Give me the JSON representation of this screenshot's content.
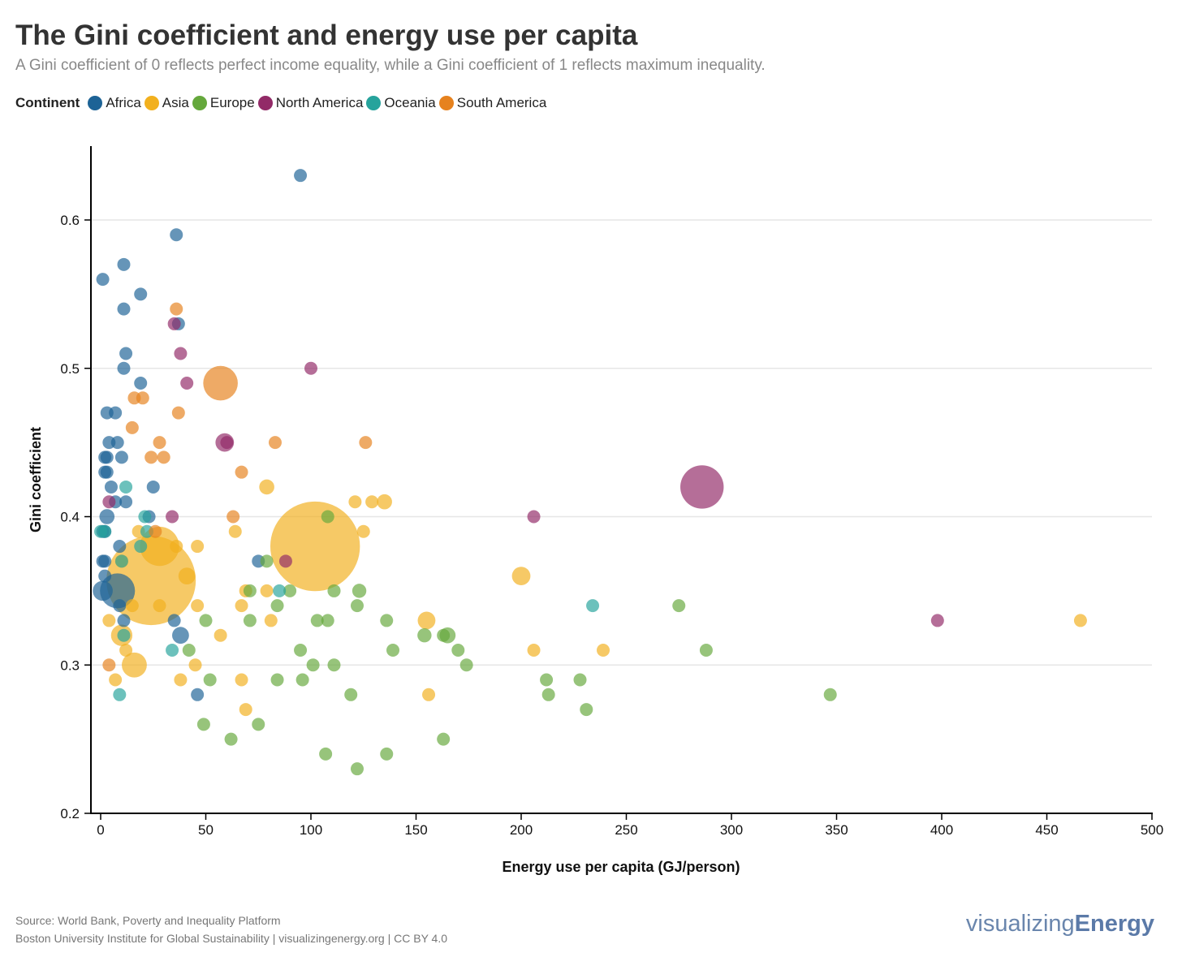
{
  "title": "The Gini coefficient and energy use per capita",
  "subtitle": "A Gini coefficient of 0 reflects perfect income equality, while a Gini coefficient of 1 reflects maximum inequality.",
  "legend_title": "Continent",
  "footer": {
    "source": "Source: World Bank, Poverty and Inequality Platform",
    "credit": "Boston University Institute for Global Sustainability | visualizingenergy.org | CC BY 4.0",
    "logo_a": "visualizing",
    "logo_b": "Energy"
  },
  "chart_data": {
    "type": "scatter",
    "title": "The Gini coefficient and energy use per capita",
    "xlabel": "Energy use per capita (GJ/person)",
    "ylabel": "Gini coefficient",
    "xlim": [
      0,
      500
    ],
    "ylim": [
      0.2,
      0.65
    ],
    "xticks": [
      0,
      50,
      100,
      150,
      200,
      250,
      300,
      350,
      400,
      450,
      500
    ],
    "yticks": [
      0.2,
      0.3,
      0.4,
      0.5,
      0.6
    ],
    "grid": "horizontal",
    "legend_position": "top-left",
    "size_note": "bubble size ~ population (approx., millions)",
    "series": [
      {
        "name": "Africa",
        "color": "#1d6396",
        "points": [
          [
            95,
            0.63,
            20
          ],
          [
            36,
            0.59,
            10
          ],
          [
            1,
            0.56,
            10
          ],
          [
            11,
            0.57,
            10
          ],
          [
            19,
            0.55,
            10
          ],
          [
            11,
            0.54,
            12
          ],
          [
            37,
            0.53,
            10
          ],
          [
            12,
            0.51,
            15
          ],
          [
            11,
            0.5,
            10
          ],
          [
            19,
            0.49,
            10
          ],
          [
            3,
            0.47,
            10
          ],
          [
            7,
            0.47,
            10
          ],
          [
            4,
            0.45,
            10
          ],
          [
            8,
            0.45,
            10
          ],
          [
            2,
            0.44,
            10
          ],
          [
            3,
            0.44,
            10
          ],
          [
            10,
            0.44,
            12
          ],
          [
            2,
            0.43,
            10
          ],
          [
            3,
            0.43,
            22
          ],
          [
            5,
            0.42,
            10
          ],
          [
            25,
            0.42,
            10
          ],
          [
            7,
            0.41,
            20
          ],
          [
            12,
            0.41,
            10
          ],
          [
            3,
            0.4,
            40
          ],
          [
            23,
            0.4,
            15
          ],
          [
            1,
            0.39,
            10
          ],
          [
            2,
            0.39,
            10
          ],
          [
            9,
            0.38,
            10
          ],
          [
            75,
            0.37,
            10
          ],
          [
            1,
            0.37,
            10
          ],
          [
            2,
            0.37,
            10
          ],
          [
            2,
            0.36,
            10
          ],
          [
            1,
            0.35,
            70
          ],
          [
            8,
            0.35,
            215
          ],
          [
            9,
            0.34,
            10
          ],
          [
            35,
            0.33,
            10
          ],
          [
            11,
            0.33,
            10
          ],
          [
            38,
            0.32,
            50
          ],
          [
            46,
            0.28,
            15
          ]
        ]
      },
      {
        "name": "Asia",
        "color": "#f2b01e",
        "points": [
          [
            24,
            0.357,
            1400
          ],
          [
            102,
            0.38,
            1410
          ],
          [
            28,
            0.38,
            270
          ],
          [
            41,
            0.36,
            50
          ],
          [
            16,
            0.3,
            110
          ],
          [
            10,
            0.32,
            80
          ],
          [
            79,
            0.42,
            40
          ],
          [
            135,
            0.41,
            40
          ],
          [
            200,
            0.36,
            60
          ],
          [
            155,
            0.33,
            55
          ],
          [
            69,
            0.35,
            30
          ],
          [
            12,
            0.31,
            25
          ],
          [
            4,
            0.33,
            10
          ],
          [
            7,
            0.29,
            10
          ],
          [
            10,
            0.37,
            10
          ],
          [
            15,
            0.34,
            10
          ],
          [
            18,
            0.39,
            10
          ],
          [
            28,
            0.34,
            10
          ],
          [
            36,
            0.38,
            10
          ],
          [
            46,
            0.38,
            10
          ],
          [
            46,
            0.34,
            10
          ],
          [
            45,
            0.3,
            15
          ],
          [
            38,
            0.29,
            10
          ],
          [
            57,
            0.32,
            10
          ],
          [
            64,
            0.39,
            10
          ],
          [
            67,
            0.34,
            10
          ],
          [
            67,
            0.29,
            10
          ],
          [
            69,
            0.27,
            10
          ],
          [
            79,
            0.35,
            10
          ],
          [
            81,
            0.33,
            10
          ],
          [
            121,
            0.41,
            10
          ],
          [
            125,
            0.39,
            10
          ],
          [
            129,
            0.41,
            10
          ],
          [
            156,
            0.28,
            10
          ],
          [
            206,
            0.31,
            10
          ],
          [
            239,
            0.31,
            12
          ],
          [
            466,
            0.33,
            10
          ]
        ]
      },
      {
        "name": "Europe",
        "color": "#65a83c",
        "points": [
          [
            108,
            0.4,
            10
          ],
          [
            79,
            0.37,
            10
          ],
          [
            71,
            0.35,
            10
          ],
          [
            90,
            0.35,
            10
          ],
          [
            84,
            0.34,
            10
          ],
          [
            111,
            0.35,
            30
          ],
          [
            123,
            0.35,
            35
          ],
          [
            122,
            0.34,
            22
          ],
          [
            136,
            0.33,
            10
          ],
          [
            103,
            0.33,
            10
          ],
          [
            108,
            0.33,
            10
          ],
          [
            71,
            0.33,
            10
          ],
          [
            50,
            0.33,
            10
          ],
          [
            42,
            0.31,
            10
          ],
          [
            95,
            0.31,
            10
          ],
          [
            139,
            0.31,
            10
          ],
          [
            154,
            0.32,
            35
          ],
          [
            165,
            0.32,
            45
          ],
          [
            163,
            0.32,
            10
          ],
          [
            170,
            0.31,
            10
          ],
          [
            174,
            0.3,
            10
          ],
          [
            111,
            0.3,
            22
          ],
          [
            101,
            0.3,
            10
          ],
          [
            52,
            0.29,
            10
          ],
          [
            84,
            0.29,
            10
          ],
          [
            96,
            0.29,
            10
          ],
          [
            119,
            0.28,
            10
          ],
          [
            49,
            0.26,
            10
          ],
          [
            75,
            0.26,
            22
          ],
          [
            62,
            0.25,
            10
          ],
          [
            107,
            0.24,
            10
          ],
          [
            122,
            0.23,
            10
          ],
          [
            136,
            0.24,
            10
          ],
          [
            163,
            0.25,
            10
          ],
          [
            212,
            0.29,
            10
          ],
          [
            213,
            0.28,
            10
          ],
          [
            228,
            0.29,
            10
          ],
          [
            231,
            0.27,
            10
          ],
          [
            275,
            0.34,
            10
          ],
          [
            288,
            0.31,
            10
          ],
          [
            347,
            0.28,
            10
          ]
        ]
      },
      {
        "name": "North America",
        "color": "#922a67",
        "points": [
          [
            286,
            0.42,
            330
          ],
          [
            59,
            0.45,
            60
          ],
          [
            60,
            0.45,
            10
          ],
          [
            100,
            0.5,
            10
          ],
          [
            38,
            0.51,
            10
          ],
          [
            41,
            0.49,
            10
          ],
          [
            35,
            0.53,
            10
          ],
          [
            34,
            0.4,
            10
          ],
          [
            4,
            0.41,
            10
          ],
          [
            206,
            0.4,
            10
          ],
          [
            398,
            0.33,
            15
          ],
          [
            88,
            0.37,
            10
          ]
        ]
      },
      {
        "name": "Oceania",
        "color": "#26a39c",
        "points": [
          [
            0,
            0.39,
            10
          ],
          [
            2,
            0.39,
            10
          ],
          [
            12,
            0.42,
            10
          ],
          [
            21,
            0.4,
            10
          ],
          [
            22,
            0.39,
            10
          ],
          [
            19,
            0.38,
            10
          ],
          [
            10,
            0.37,
            10
          ],
          [
            11,
            0.32,
            10
          ],
          [
            34,
            0.31,
            10
          ],
          [
            9,
            0.28,
            10
          ],
          [
            85,
            0.35,
            10
          ],
          [
            234,
            0.34,
            10
          ]
        ]
      },
      {
        "name": "South America",
        "color": "#e6821e",
        "points": [
          [
            57,
            0.49,
            210
          ],
          [
            36,
            0.54,
            22
          ],
          [
            16,
            0.48,
            10
          ],
          [
            20,
            0.48,
            10
          ],
          [
            37,
            0.47,
            10
          ],
          [
            15,
            0.46,
            10
          ],
          [
            28,
            0.45,
            10
          ],
          [
            30,
            0.44,
            18
          ],
          [
            24,
            0.44,
            10
          ],
          [
            67,
            0.43,
            10
          ],
          [
            83,
            0.45,
            10
          ],
          [
            126,
            0.45,
            15
          ],
          [
            63,
            0.4,
            10
          ],
          [
            26,
            0.39,
            10
          ],
          [
            4,
            0.3,
            10
          ]
        ]
      }
    ]
  }
}
